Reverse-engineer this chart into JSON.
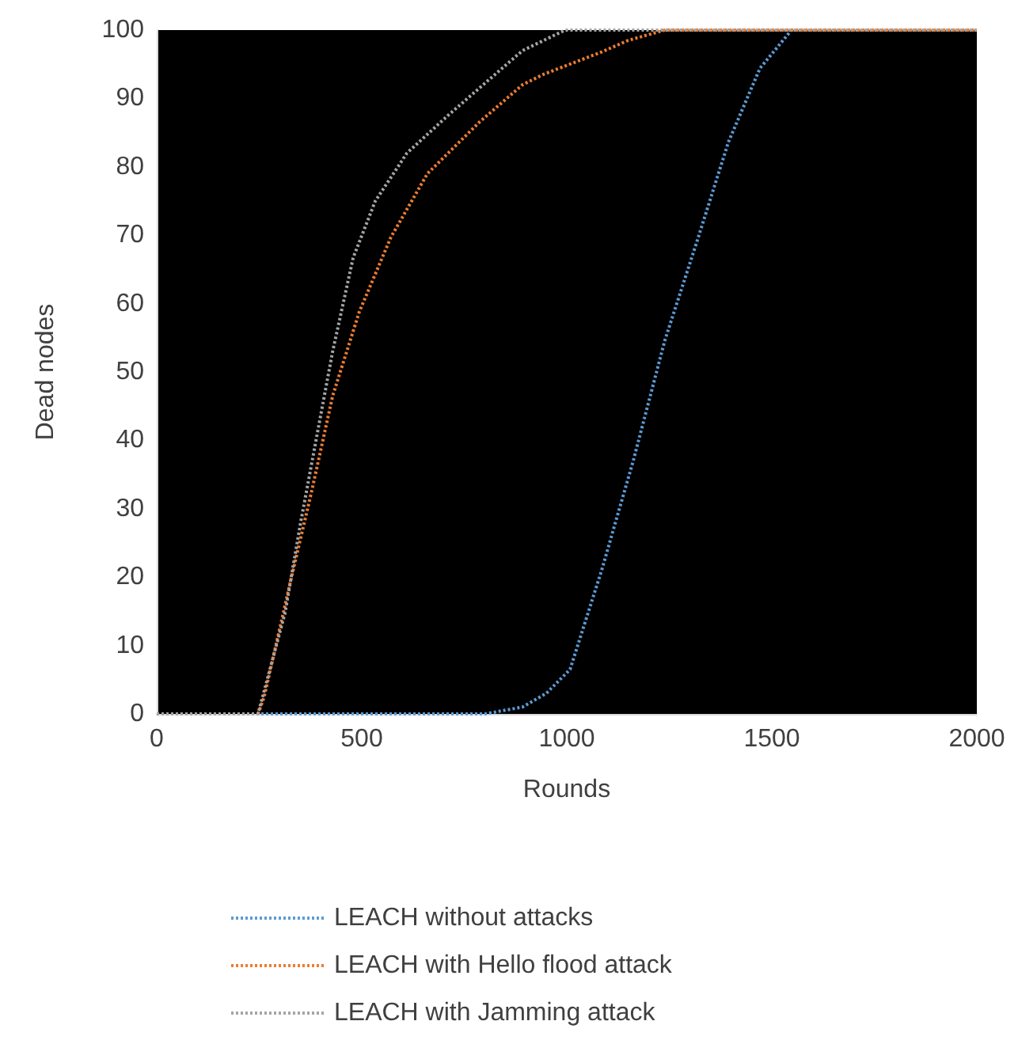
{
  "chart_data": {
    "type": "line",
    "xlabel": "Rounds",
    "ylabel": "Dead nodes",
    "xlim": [
      0,
      2000
    ],
    "xticks": [
      0,
      500,
      1000,
      1500,
      2000
    ],
    "ylim": [
      0,
      100
    ],
    "yticks": [
      0,
      10,
      20,
      30,
      40,
      50,
      60,
      70,
      80,
      90,
      100
    ],
    "grid": false,
    "legend": "bottom",
    "marker": "none",
    "line_style": "dotted",
    "series": [
      {
        "name": "LEACH without attacks",
        "color": "#5b9bd5",
        "x": [
          0,
          200,
          400,
          600,
          800,
          892,
          950,
          1008,
          1085,
          1162,
          1239,
          1317,
          1394,
          1471,
          1548
        ],
        "values": [
          0,
          0,
          0,
          0,
          0,
          1,
          3,
          6.5,
          21,
          37,
          54.6,
          69,
          83.6,
          94.4,
          100
        ]
      },
      {
        "name": "LEACH with Hello flood attack",
        "color": "#ed7d31",
        "x": [
          247,
          262,
          324,
          378,
          429,
          494,
          571,
          660,
          788,
          892,
          942,
          1085,
          1150,
          1239,
          1400,
          1600,
          1800,
          2000
        ],
        "values": [
          0,
          2.5,
          18.8,
          32.6,
          46.5,
          58.8,
          69.7,
          79,
          86.6,
          92,
          93.5,
          96.8,
          98.5,
          100,
          100,
          100,
          100,
          100
        ]
      },
      {
        "name": "LEACH with Jamming attack",
        "color": "#a5a5a5",
        "x": [
          0,
          100,
          200,
          247,
          313,
          351,
          390,
          429,
          479,
          533,
          610,
          710,
          842,
          892,
          996,
          1200,
          1400,
          1600,
          1800,
          2000
        ],
        "values": [
          0,
          0,
          0,
          0,
          14.8,
          28,
          40.5,
          53,
          66.7,
          75,
          82,
          87.5,
          94.4,
          97,
          100,
          100,
          100,
          100,
          100,
          100
        ]
      }
    ]
  }
}
